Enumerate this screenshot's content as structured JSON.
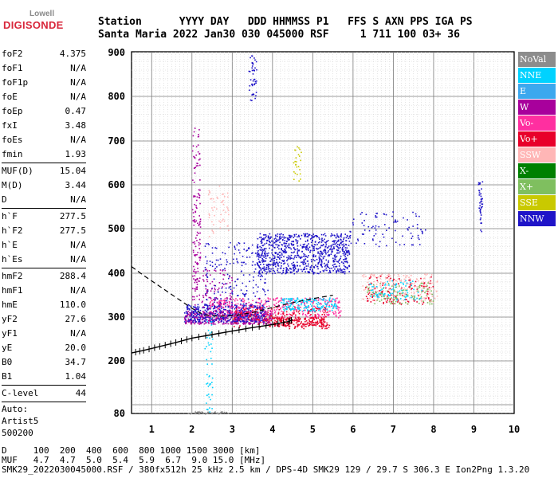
{
  "logo": {
    "line1": "Lowell",
    "line2": "DIGISONDE"
  },
  "header": {
    "line1": "Station      YYYY DAY   DDD HHMMSS P1   FFS S AXN PPS IGA PS",
    "line2": "Santa Maria 2022 Jan30 030 045000 RSF     1 711 100 03+ 36"
  },
  "params": [
    [
      {
        "label": "foF2",
        "value": "4.375"
      },
      {
        "label": "foF1",
        "value": "N/A"
      },
      {
        "label": "foF1p",
        "value": "N/A"
      },
      {
        "label": "foE",
        "value": "N/A"
      },
      {
        "label": "foEp",
        "value": "0.47"
      },
      {
        "label": "fxI",
        "value": "3.48"
      },
      {
        "label": "foEs",
        "value": "N/A"
      },
      {
        "label": "fmin",
        "value": "1.93"
      }
    ],
    [
      {
        "label": "MUF(D)",
        "value": "15.04"
      },
      {
        "label": "M(D)",
        "value": "3.44"
      },
      {
        "label": "D",
        "value": "N/A"
      }
    ],
    [
      {
        "label": "h`F",
        "value": "277.5"
      },
      {
        "label": "h`F2",
        "value": "277.5"
      },
      {
        "label": "h`E",
        "value": "N/A"
      },
      {
        "label": "h`Es",
        "value": "N/A"
      }
    ],
    [
      {
        "label": "hmF2",
        "value": "288.4"
      },
      {
        "label": "hmF1",
        "value": "N/A"
      },
      {
        "label": "hmE",
        "value": "110.0"
      },
      {
        "label": "yF2",
        "value": "27.6"
      },
      {
        "label": "yF1",
        "value": "N/A"
      },
      {
        "label": "yE",
        "value": "20.0"
      },
      {
        "label": "B0",
        "value": "34.7"
      },
      {
        "label": "B1",
        "value": "1.04"
      }
    ],
    [
      {
        "label": "C-level",
        "value": "44"
      }
    ]
  ],
  "autoscaling": {
    "line1": "Auto:",
    "line2": "Artist5",
    "line3": "500200"
  },
  "legend": [
    {
      "label": "NoVal",
      "color": "#8c8c8c"
    },
    {
      "label": "NNE",
      "color": "#00d2ff"
    },
    {
      "label": "E",
      "color": "#3ca8ee"
    },
    {
      "label": "W",
      "color": "#a8009c"
    },
    {
      "label": "Vo-",
      "color": "#ff2fa0"
    },
    {
      "label": "Vo+",
      "color": "#e8002a"
    },
    {
      "label": "SSW",
      "color": "#ffb6b6"
    },
    {
      "label": "X-",
      "color": "#008000"
    },
    {
      "label": "X+",
      "color": "#7fbf5f"
    },
    {
      "label": "SSE",
      "color": "#c9c900"
    },
    {
      "label": "NNW",
      "color": "#1f14c8"
    }
  ],
  "bottom": {
    "line1": "D     100  200  400  600  800 1000 1500 3000 [km]",
    "line2": "MUF   4.7  4.7  5.0  5.4  5.9  6.7  9.0 15.0 [MHz]",
    "line3": "SMK29_2022030045000.RSF / 380fx512h 25 kHz 2.5 km / DPS-4D SMK29 129 / 29.7 S 306.3 E Ion2Png 1.3.20"
  },
  "chart_data": {
    "type": "scatter",
    "xlim": [
      0.5,
      10
    ],
    "ylim": [
      80,
      900
    ],
    "xticks": [
      1,
      2,
      3,
      4,
      5,
      6,
      7,
      8,
      9,
      10
    ],
    "yticks": [
      80,
      200,
      300,
      400,
      500,
      600,
      700,
      800,
      900
    ],
    "grid": true,
    "clusters": [
      {
        "series": "W",
        "x": [
          1.8,
          4.0
        ],
        "y": [
          285,
          315
        ],
        "n": 500
      },
      {
        "series": "NNW",
        "x": [
          1.8,
          3.8
        ],
        "y": [
          290,
          330
        ],
        "n": 380
      },
      {
        "series": "Vo-",
        "x": [
          2.4,
          5.7
        ],
        "y": [
          300,
          345
        ],
        "n": 380
      },
      {
        "series": "Vo+",
        "x": [
          3.0,
          5.4
        ],
        "y": [
          275,
          325
        ],
        "n": 200
      },
      {
        "series": "NNE",
        "x": [
          4.2,
          5.6
        ],
        "y": [
          315,
          345
        ],
        "n": 160
      },
      {
        "series": "NNW",
        "x": [
          3.6,
          5.9
        ],
        "y": [
          400,
          490
        ],
        "n": 850
      },
      {
        "series": "NNW",
        "x": [
          2.3,
          3.9
        ],
        "y": [
          320,
          470
        ],
        "n": 200
      },
      {
        "series": "W",
        "x": [
          2.0,
          3.0
        ],
        "y": [
          320,
          410
        ],
        "n": 110
      },
      {
        "series": "NNW",
        "x": [
          5.9,
          7.8
        ],
        "y": [
          460,
          540
        ],
        "n": 90
      },
      {
        "series": "Vo+",
        "x": [
          4.0,
          5.3
        ],
        "y": [
          280,
          300
        ],
        "n": 170
      },
      {
        "series": "SSW",
        "x": [
          6.2,
          8.1
        ],
        "y": [
          335,
          400
        ],
        "n": 200
      },
      {
        "series": "Vo+",
        "x": [
          6.3,
          8.0
        ],
        "y": [
          330,
          395
        ],
        "n": 120
      },
      {
        "series": "NNE",
        "x": [
          6.4,
          7.7
        ],
        "y": [
          340,
          385
        ],
        "n": 80
      },
      {
        "series": "X+",
        "x": [
          6.3,
          8.0
        ],
        "y": [
          330,
          380
        ],
        "n": 90
      },
      {
        "series": "W",
        "x": [
          2.0,
          2.2
        ],
        "y": [
          360,
          730
        ],
        "n": 120
      },
      {
        "series": "NNW",
        "x": [
          3.4,
          3.6
        ],
        "y": [
          790,
          900
        ],
        "n": 45
      },
      {
        "series": "NNW",
        "x": [
          9.1,
          9.2
        ],
        "y": [
          490,
          610
        ],
        "n": 40
      },
      {
        "series": "SSW",
        "x": [
          2.4,
          2.9
        ],
        "y": [
          480,
          600
        ],
        "n": 50
      },
      {
        "series": "NoVal",
        "x": [
          1.9,
          2.9
        ],
        "y": [
          80,
          85
        ],
        "n": 40
      },
      {
        "series": "NNE",
        "x": [
          2.3,
          2.5
        ],
        "y": [
          80,
          300
        ],
        "n": 50
      },
      {
        "series": "SSE",
        "x": [
          4.5,
          4.7
        ],
        "y": [
          610,
          690
        ],
        "n": 25
      }
    ],
    "profile": {
      "x": [
        0.5,
        0.8,
        1.2,
        1.6,
        2.0,
        2.5,
        3.0,
        3.5,
        4.0,
        4.4,
        4.5
      ],
      "y": [
        218,
        224,
        233,
        242,
        252,
        260,
        268,
        276,
        283,
        290,
        294
      ]
    },
    "profile_dashed": {
      "x": [
        0.5,
        0.8,
        1.2,
        1.6,
        2.0,
        2.3,
        2.7,
        3.1,
        3.6,
        4.0,
        4.5,
        5.0,
        5.5
      ],
      "y": [
        415,
        395,
        370,
        345,
        320,
        305,
        302,
        304,
        312,
        322,
        333,
        342,
        350
      ]
    }
  }
}
